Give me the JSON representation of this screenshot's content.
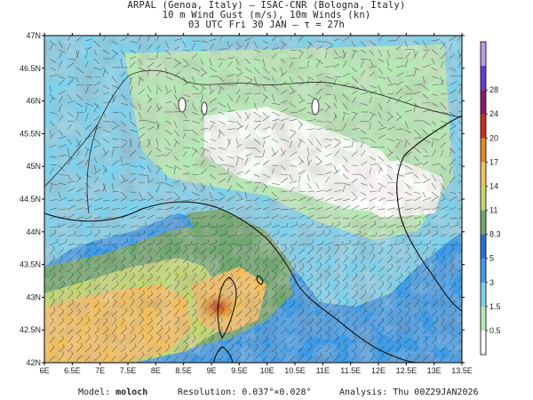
{
  "header": {
    "line1": "ARPAL (Genoa, Italy)  –  ISAC-CNR (Bologna, Italy)",
    "line2": "10 m Wind Gust (m/s), 10m Winds (kn)",
    "line3": "03 UTC Fri 30 JAN  –  τ = 27h"
  },
  "axes": {
    "lat_labels": [
      "47N",
      "46.5N",
      "46N",
      "45.5N",
      "45N",
      "44.5N",
      "44N",
      "43.5N",
      "43N",
      "42.5N",
      "42N"
    ],
    "lat_values": [
      47,
      46.5,
      46,
      45.5,
      45,
      44.5,
      44,
      43.5,
      43,
      42.5,
      42
    ],
    "lon_labels": [
      "6E",
      "6.5E",
      "7E",
      "7.5E",
      "8E",
      "8.5E",
      "9E",
      "9.5E",
      "10E",
      "10.5E",
      "11E",
      "11.5E",
      "12E",
      "12.5E",
      "13E",
      "13.5E"
    ],
    "lon_values": [
      6,
      6.5,
      7,
      7.5,
      8,
      8.5,
      9,
      9.5,
      10,
      10.5,
      11,
      11.5,
      12,
      12.5,
      13,
      13.5
    ]
  },
  "colorbar": {
    "labels": [
      "0.5",
      "1.5",
      "3",
      "5",
      "8.3",
      "11",
      "14",
      "17",
      "20",
      "24",
      "28"
    ],
    "colors": [
      "#ffffff",
      "#b5e8b5",
      "#7fd0ea",
      "#3f9ce6",
      "#2d6ed6",
      "#6fa870",
      "#c0d870",
      "#f0c060",
      "#e08a30",
      "#c83020",
      "#8a1a6e",
      "#6a3bd0",
      "#b89ae8"
    ]
  },
  "footer": {
    "model_label": "Model:",
    "model_value": "moloch",
    "resolution_label": "Resolution:",
    "resolution_value": "0.037°×0.028°",
    "analysis_label": "Analysis:",
    "analysis_value": "Thu 00Z29JAN2026"
  }
}
